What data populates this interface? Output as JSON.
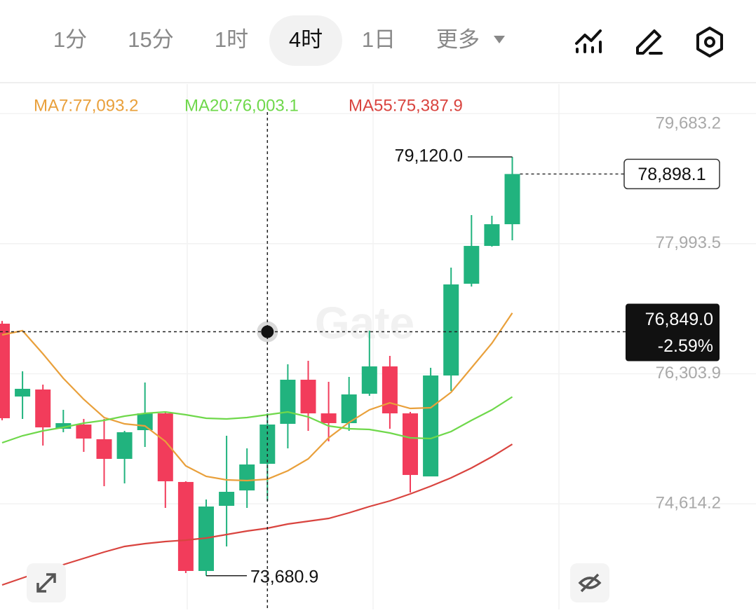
{
  "tabs": [
    {
      "label": "1分"
    },
    {
      "label": "15分"
    },
    {
      "label": "1时"
    },
    {
      "label": "4时",
      "active": true
    },
    {
      "label": "1日"
    },
    {
      "label": "更多"
    }
  ],
  "watermark": "Gate",
  "chart_data": {
    "type": "candlestick",
    "up_color": "#21b37e",
    "down_color": "#f23c5b",
    "ylim": [
      73241.4,
      80066.4
    ],
    "yticks": [
      {
        "value": 79683.2,
        "label": "79,683.2"
      },
      {
        "value": 77993.5,
        "label": "77,993.5"
      },
      {
        "value": 76303.9,
        "label": "76,303.9"
      },
      {
        "value": 74614.2,
        "label": "74,614.2"
      }
    ],
    "grid": true,
    "candles": {
      "open": [
        76954,
        76008,
        76099,
        75589,
        75644,
        75453,
        75198,
        75571,
        75789,
        74898,
        73742,
        74588,
        74788,
        75134,
        75653,
        76226,
        75789,
        75662,
        76044,
        76399,
        75789,
        74970,
        76281,
        77473,
        77964,
        78246
      ],
      "high": [
        76990,
        76335,
        76162,
        75835,
        75717,
        75717,
        75562,
        76190,
        75808,
        74907,
        74670,
        75498,
        75334,
        75789,
        76426,
        76472,
        76199,
        76263,
        76863,
        76536,
        75808,
        76381,
        77682,
        78365,
        78356,
        79120.0
      ],
      "low": [
        75700,
        75717,
        75371,
        75544,
        75289,
        74843,
        74879,
        75353,
        74561,
        73715,
        73680.9,
        74060,
        74561,
        74652,
        75334,
        75562,
        75425,
        75562,
        76017,
        75589,
        74761,
        74970,
        76081,
        77436,
        77955,
        78037
      ],
      "close": [
        75726,
        76108,
        75607,
        75662,
        75462,
        75198,
        75544,
        75789,
        74907,
        73742,
        74579,
        74770,
        75125,
        75644,
        76226,
        75789,
        75662,
        76035,
        76399,
        75789,
        74989,
        76281,
        77464,
        77964,
        78246,
        78898.1
      ]
    },
    "series": [
      {
        "label": "MA7:77,093.2",
        "color": "#e9a03b",
        "values": [
          76809,
          76863,
          76563,
          76244,
          75971,
          75735,
          75653,
          75626,
          75425,
          75107,
          74970,
          74925,
          74916,
          74934,
          75043,
          75198,
          75471,
          75671,
          75835,
          75926,
          75853,
          75862,
          76062,
          76381,
          76699,
          77093.2
        ]
      },
      {
        "label": "MA20:76,003.1",
        "color": "#6fd84b",
        "values": [
          75407,
          75498,
          75562,
          75607,
          75662,
          75698,
          75753,
          75789,
          75808,
          75771,
          75726,
          75717,
          75735,
          75771,
          75808,
          75744,
          75626,
          75589,
          75580,
          75535,
          75471,
          75462,
          75553,
          75698,
          75835,
          76003.1
        ]
      },
      {
        "label": "MA55:75,387.9",
        "color": "#d9443f",
        "values": [
          73560,
          73651,
          73742,
          73824,
          73906,
          73988,
          74060,
          74097,
          74124,
          74142,
          74170,
          74215,
          74261,
          74297,
          74352,
          74388,
          74424,
          74497,
          74579,
          74652,
          74743,
          74843,
          74952,
          75080,
          75225,
          75387.9
        ]
      }
    ],
    "annotations": {
      "high": {
        "value": 79120.0,
        "label": "79,120.0"
      },
      "low": {
        "value": 73680.9,
        "label": "73,680.9"
      },
      "last_price": {
        "value": 78898.1,
        "label": "78,898.1"
      },
      "crosshair": {
        "value": 76849.0,
        "label": "76,849.0",
        "change": "-2.59%"
      }
    }
  }
}
